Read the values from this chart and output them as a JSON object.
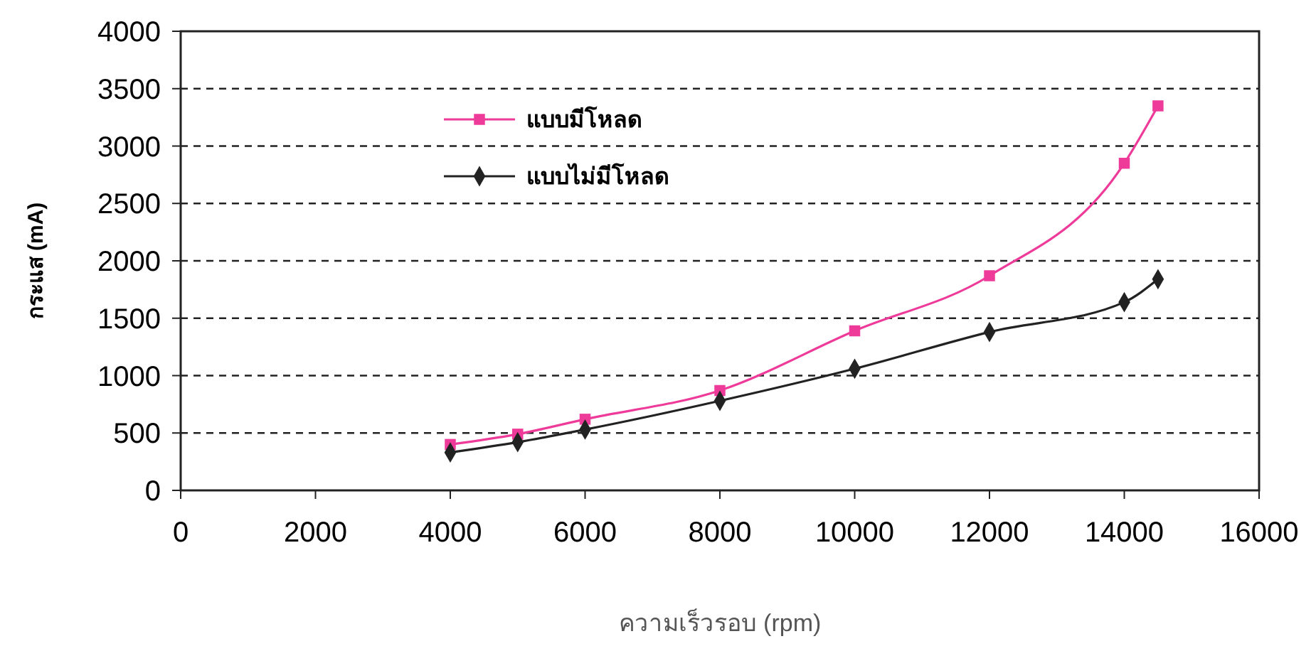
{
  "chart_data": {
    "type": "line",
    "xlabel": "ความเร็วรอบ (rpm)",
    "ylabel": "กระแส (mA)",
    "x": [
      4000,
      5000,
      6000,
      8000,
      10000,
      12000,
      14000,
      14500
    ],
    "series": [
      {
        "name": "แบบมีโหลด",
        "color": "#ee3b9a",
        "marker": "square",
        "values": [
          400,
          490,
          620,
          870,
          1390,
          1870,
          2850,
          3350
        ]
      },
      {
        "name": "แบบไม่มีโหลด",
        "color": "#222222",
        "marker": "diamond",
        "values": [
          330,
          420,
          530,
          780,
          1060,
          1380,
          1640,
          1840
        ]
      }
    ],
    "xlim": [
      0,
      16000
    ],
    "xticks": [
      0,
      2000,
      4000,
      6000,
      8000,
      10000,
      12000,
      14000,
      16000
    ],
    "ylim": [
      0,
      4000
    ],
    "yticks": [
      0,
      500,
      1000,
      1500,
      2000,
      2500,
      3000,
      3500,
      4000
    ],
    "grid": "y",
    "legend": "top left",
    "line_style": "solid"
  }
}
